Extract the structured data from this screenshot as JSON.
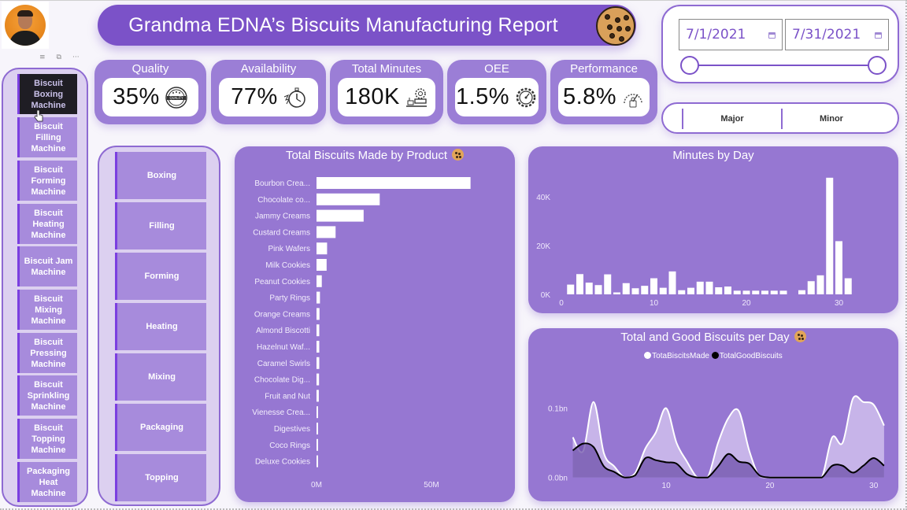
{
  "header": {
    "title": "Grandma EDNA’s Biscuits Manufacturing Report",
    "visual_header_icons": [
      "filter-icon",
      "focus-mode-icon",
      "more-options-icon"
    ]
  },
  "kpis": [
    {
      "label": "Quality",
      "value": "35%",
      "icon": "quality-badge-icon"
    },
    {
      "label": "Availability",
      "value": "77%",
      "icon": "stopwatch-icon"
    },
    {
      "label": "Total Minutes",
      "value": "180K",
      "icon": "machine-gear-icon"
    },
    {
      "label": "OEE",
      "value": "1.5%",
      "icon": "gear-gauge-icon"
    },
    {
      "label": "Performance",
      "value": "5.8%",
      "icon": "speedometer-icon"
    }
  ],
  "date_slicer": {
    "start": "7/1/2021",
    "end": "7/31/2021",
    "range_fraction": [
      0,
      1
    ]
  },
  "type_slicer": {
    "options": [
      "Major",
      "Minor"
    ]
  },
  "machine_slicer": {
    "selected": "Biscuit Boxing Machine",
    "items": [
      {
        "label": "Biscuit Boxing Machine",
        "selected": true
      },
      {
        "label": "Biscuit Filling Machine",
        "selected": false
      },
      {
        "label": "Biscuit Forming Machine",
        "selected": false
      },
      {
        "label": "Biscuit Heating Machine",
        "selected": false
      },
      {
        "label": "Biscuit Jam Machine",
        "selected": false
      },
      {
        "label": "Biscuit Mixing Machine",
        "selected": false
      },
      {
        "label": "Biscuit Pressing Machine",
        "selected": false
      },
      {
        "label": "Biscuit Sprinkling Machine",
        "selected": false
      },
      {
        "label": "Biscuit Topping Machine",
        "selected": false
      },
      {
        "label": "Packaging Heat Machine",
        "selected": false
      }
    ]
  },
  "process_slicer": {
    "items": [
      "Boxing",
      "Filling",
      "Forming",
      "Heating",
      "Mixing",
      "Packaging",
      "Topping"
    ]
  },
  "colors": {
    "accent": "#7b52c8",
    "card": "#9677d2",
    "kpi_card": "#9b7ed6",
    "slicer_item": "#a78bdc",
    "slicer_selected": "#1f1d24",
    "bar": "#ffffff",
    "good_line": "#000000"
  },
  "chart_data": [
    {
      "type": "bar",
      "orientation": "horizontal",
      "title": "Total Biscuits Made by Product",
      "categories": [
        "Bourbon Crea...",
        "Chocolate co...",
        "Jammy Creams",
        "Custard Creams",
        "Pink Wafers",
        "Milk Cookies",
        "Peanut Cookies",
        "Party Rings",
        "Orange Creams",
        "Almond Biscotti",
        "Hazelnut Waf...",
        "Caramel Swirls",
        "Chocolate Dig...",
        "Fruit and Nut",
        "Vienesse Crea...",
        "Digestives",
        "Coco Rings",
        "Deluxe Cookies"
      ],
      "values": [
        67,
        27.5,
        20.5,
        8.3,
        4.6,
        4.4,
        2.3,
        1.5,
        1.3,
        1.2,
        1.2,
        1.2,
        1.1,
        1.0,
        0.5,
        0.5,
        0.5,
        0.4
      ],
      "units": "M",
      "xlabel": "",
      "ylabel": "",
      "xticks": [
        "0M",
        "50M"
      ],
      "xlim": [
        0,
        80
      ],
      "grid": false
    },
    {
      "type": "bar",
      "title": "Minutes by Day",
      "x": [
        1,
        2,
        3,
        4,
        5,
        6,
        7,
        8,
        9,
        10,
        11,
        12,
        13,
        14,
        15,
        16,
        17,
        18,
        19,
        20,
        21,
        22,
        23,
        24,
        25,
        26,
        27,
        28,
        29,
        30,
        31
      ],
      "values": [
        4.0,
        8.3,
        4.8,
        3.8,
        8.2,
        0.8,
        4.6,
        2.5,
        3.5,
        6.6,
        2.7,
        9.4,
        1.7,
        2.7,
        5.2,
        5.2,
        2.9,
        3.2,
        1.5,
        1.5,
        1.5,
        1.5,
        1.5,
        1.5,
        0,
        1.7,
        5.4,
        7.8,
        47.8,
        21.8,
        6.6
      ],
      "units": "K",
      "xticks": [
        "0",
        "10",
        "20",
        "30"
      ],
      "yticks": [
        "0K",
        "20K",
        "40K"
      ],
      "xlim": [
        0,
        31
      ],
      "ylim": [
        0,
        50
      ],
      "grid": false
    },
    {
      "type": "area",
      "title": "Total and Good Biscuits per Day",
      "legend": "top-center",
      "x": [
        1,
        2,
        3,
        4,
        5,
        6,
        7,
        8,
        9,
        10,
        11,
        12,
        13,
        14,
        15,
        16,
        17,
        18,
        19,
        20,
        21,
        22,
        23,
        24,
        25,
        26,
        27,
        28,
        29,
        30,
        31
      ],
      "series": [
        {
          "name": "TotaBiscitsMade",
          "color": "#ffffff",
          "values": [
            0.058,
            0.038,
            0.109,
            0.035,
            0.016,
            0,
            0.006,
            0.042,
            0.065,
            0.1,
            0.05,
            0.023,
            0,
            0,
            0.05,
            0.086,
            0.096,
            0.039,
            0.001,
            0,
            0,
            0,
            0,
            0,
            0,
            0.058,
            0.05,
            0.114,
            0.109,
            0.105,
            0.075
          ]
        },
        {
          "name": "TotalGoodBiscuits",
          "color": "#000000",
          "values": [
            0.039,
            0.049,
            0.044,
            0.016,
            0.008,
            0,
            0.003,
            0.028,
            0.025,
            0.022,
            0.02,
            0.005,
            0,
            0,
            0.016,
            0.034,
            0.023,
            0.02,
            0.003,
            0,
            0,
            0,
            0,
            0,
            0,
            0.017,
            0.017,
            0.007,
            0.017,
            0.028,
            0.017
          ]
        }
      ],
      "units": "bn",
      "xticks": [
        "10",
        "20",
        "30"
      ],
      "yticks": [
        "0.0bn",
        "0.1bn"
      ],
      "xlim": [
        1,
        31
      ],
      "ylim": [
        0,
        0.12
      ],
      "grid": false
    }
  ]
}
